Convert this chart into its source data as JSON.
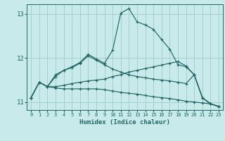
{
  "xlabel": "Humidex (Indice chaleur)",
  "xlim": [
    -0.5,
    23.5
  ],
  "ylim": [
    10.82,
    13.22
  ],
  "background_color": "#c8eaea",
  "grid_color": "#a0cccc",
  "line_color": "#226666",
  "xtick_labels": [
    "0",
    "1",
    "2",
    "3",
    "4",
    "5",
    "6",
    "7",
    "8",
    "9",
    "10",
    "11",
    "12",
    "13",
    "14",
    "15",
    "16",
    "17",
    "18",
    "19",
    "20",
    "21",
    "22",
    "23"
  ],
  "ytick_vals": [
    11,
    12,
    13
  ],
  "lines": [
    {
      "x": [
        0,
        1,
        2,
        3,
        4,
        5,
        6,
        7,
        8,
        9,
        10,
        11,
        12,
        13,
        14,
        15,
        16,
        17,
        18,
        19,
        20,
        21,
        22,
        23
      ],
      "y": [
        11.1,
        11.45,
        11.35,
        11.62,
        11.72,
        11.8,
        11.9,
        12.08,
        11.98,
        11.88,
        12.18,
        13.02,
        13.12,
        12.82,
        12.75,
        12.65,
        12.42,
        12.2,
        11.85,
        11.8,
        11.62,
        11.1,
        10.96,
        10.9
      ]
    },
    {
      "x": [
        0,
        1,
        2,
        3,
        4,
        5,
        6,
        7,
        8,
        9,
        10,
        11,
        12,
        13,
        14,
        15,
        16,
        17,
        18,
        19,
        20,
        21,
        22,
        23
      ],
      "y": [
        11.1,
        11.45,
        11.35,
        11.58,
        11.72,
        11.78,
        11.88,
        12.05,
        11.95,
        11.85,
        11.75,
        11.68,
        11.62,
        11.58,
        11.55,
        11.52,
        11.5,
        11.48,
        11.45,
        11.42,
        11.62,
        11.1,
        10.96,
        10.9
      ]
    },
    {
      "x": [
        0,
        1,
        2,
        3,
        4,
        5,
        6,
        7,
        8,
        9,
        10,
        11,
        12,
        13,
        14,
        15,
        16,
        17,
        18,
        19,
        20,
        21,
        22,
        23
      ],
      "y": [
        11.1,
        11.45,
        11.35,
        11.35,
        11.38,
        11.42,
        11.45,
        11.48,
        11.5,
        11.52,
        11.58,
        11.62,
        11.68,
        11.72,
        11.76,
        11.8,
        11.84,
        11.88,
        11.92,
        11.82,
        11.62,
        11.1,
        10.96,
        10.9
      ]
    },
    {
      "x": [
        0,
        1,
        2,
        3,
        4,
        5,
        6,
        7,
        8,
        9,
        10,
        11,
        12,
        13,
        14,
        15,
        16,
        17,
        18,
        19,
        20,
        21,
        22,
        23
      ],
      "y": [
        11.1,
        11.45,
        11.35,
        11.32,
        11.3,
        11.3,
        11.3,
        11.3,
        11.3,
        11.28,
        11.25,
        11.22,
        11.2,
        11.18,
        11.15,
        11.12,
        11.1,
        11.08,
        11.05,
        11.02,
        11.0,
        10.98,
        10.96,
        10.9
      ]
    }
  ]
}
